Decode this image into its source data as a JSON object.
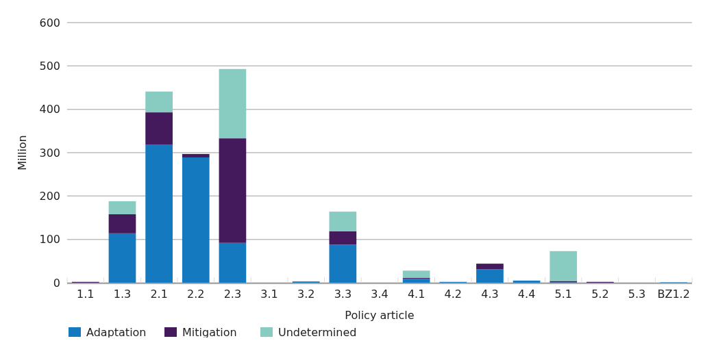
{
  "chart_data": {
    "type": "bar",
    "stacked": true,
    "xlabel": "Policy article",
    "ylabel": "Million",
    "categories": [
      "1.1",
      "1.3",
      "2.1",
      "2.2",
      "2.3",
      "3.1",
      "3.2",
      "3.3",
      "3.4",
      "4.1",
      "4.2",
      "4.3",
      "4.4",
      "5.1",
      "5.2",
      "5.3",
      "BZ1.2"
    ],
    "series": [
      {
        "name": "Adaptation",
        "color": "#1479bf",
        "values": [
          0,
          114,
          318,
          289,
          92,
          0,
          3,
          88,
          0,
          9,
          2,
          31,
          5,
          1,
          0,
          0,
          1
        ]
      },
      {
        "name": "Mitigation",
        "color": "#441a5c",
        "values": [
          2,
          44,
          75,
          8,
          241,
          0,
          0,
          31,
          0,
          2,
          0,
          13,
          0,
          3,
          2,
          0,
          0
        ]
      },
      {
        "name": "Undetermined",
        "color": "#88cbc0",
        "values": [
          0,
          30,
          48,
          0,
          160,
          0,
          0,
          45,
          0,
          17,
          0,
          0,
          0,
          69,
          0,
          0,
          0
        ]
      }
    ],
    "ylim": [
      0,
      600
    ],
    "yticks": [
      0,
      100,
      200,
      300,
      400,
      500,
      600
    ],
    "grid": "y",
    "legend": "bottom left"
  }
}
